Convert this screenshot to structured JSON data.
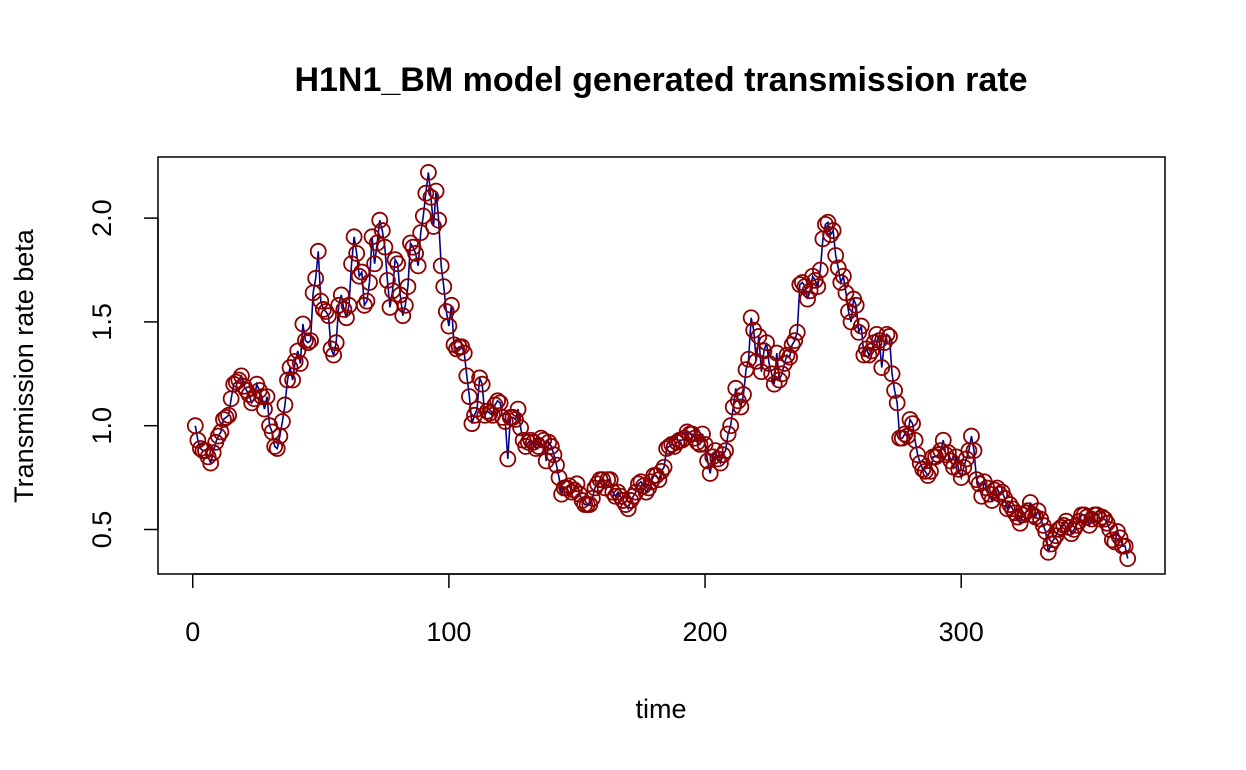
{
  "chart_data": {
    "type": "line",
    "title": "H1N1_BM model generated transmission rate",
    "x_label": "time",
    "y_label": "Transmission rate beta",
    "line_color": "#00008b",
    "point_color": "#8b0000",
    "xlim": [
      -13.56,
      379.56
    ],
    "ylim": [
      0.2856,
      2.2944
    ],
    "xticks": [
      0,
      100,
      200,
      300
    ],
    "yticks": [
      0.5,
      {
        "value": 1,
        "label": "1.0"
      },
      1.5,
      {
        "value": 2,
        "label": "2.0"
      }
    ],
    "x": [
      1,
      2,
      3,
      4,
      5,
      6,
      7,
      8,
      9,
      10,
      11,
      12,
      13,
      14,
      15,
      16,
      17,
      18,
      19,
      20,
      21,
      22,
      23,
      24,
      25,
      26,
      27,
      28,
      29,
      30,
      31,
      32,
      33,
      34,
      35,
      36,
      37,
      38,
      39,
      40,
      41,
      42,
      43,
      44,
      45,
      46,
      47,
      48,
      49,
      50,
      51,
      52,
      53,
      54,
      55,
      56,
      57,
      58,
      59,
      60,
      61,
      62,
      63,
      64,
      65,
      66,
      67,
      68,
      69,
      70,
      71,
      72,
      73,
      74,
      75,
      76,
      77,
      78,
      79,
      80,
      81,
      82,
      83,
      84,
      85,
      86,
      87,
      88,
      89,
      90,
      91,
      92,
      93,
      94,
      95,
      96,
      97,
      98,
      99,
      100,
      101,
      102,
      103,
      104,
      105,
      106,
      107,
      108,
      109,
      110,
      111,
      112,
      113,
      114,
      115,
      116,
      117,
      118,
      119,
      120,
      121,
      122,
      123,
      124,
      125,
      126,
      127,
      128,
      129,
      130,
      131,
      132,
      133,
      134,
      135,
      136,
      137,
      138,
      139,
      140,
      141,
      142,
      143,
      144,
      145,
      146,
      147,
      148,
      149,
      150,
      151,
      152,
      153,
      154,
      155,
      156,
      157,
      158,
      159,
      160,
      161,
      162,
      163,
      164,
      165,
      166,
      167,
      168,
      169,
      170,
      171,
      172,
      173,
      174,
      175,
      176,
      177,
      178,
      179,
      180,
      181,
      182,
      183,
      184,
      185,
      186,
      187,
      188,
      189,
      190,
      191,
      192,
      193,
      194,
      195,
      196,
      197,
      198,
      199,
      200,
      201,
      202,
      203,
      204,
      205,
      206,
      207,
      208,
      209,
      210,
      211,
      212,
      213,
      214,
      215,
      216,
      217,
      218,
      219,
      220,
      221,
      222,
      223,
      224,
      225,
      226,
      227,
      228,
      229,
      230,
      231,
      232,
      233,
      234,
      235,
      236,
      237,
      238,
      239,
      240,
      241,
      242,
      243,
      244,
      245,
      246,
      247,
      248,
      249,
      250,
      251,
      252,
      253,
      254,
      255,
      256,
      257,
      258,
      259,
      260,
      261,
      262,
      263,
      264,
      265,
      266,
      267,
      268,
      269,
      270,
      271,
      272,
      273,
      274,
      275,
      276,
      277,
      278,
      279,
      280,
      281,
      282,
      283,
      284,
      285,
      286,
      287,
      288,
      289,
      290,
      291,
      292,
      293,
      294,
      295,
      296,
      297,
      298,
      299,
      300,
      301,
      302,
      303,
      304,
      305,
      306,
      307,
      308,
      309,
      310,
      311,
      312,
      313,
      314,
      315,
      316,
      317,
      318,
      319,
      320,
      321,
      322,
      323,
      324,
      325,
      326,
      327,
      328,
      329,
      330,
      331,
      332,
      333,
      334,
      335,
      336,
      337,
      338,
      339,
      340,
      341,
      342,
      343,
      344,
      345,
      346,
      347,
      348,
      349,
      350,
      351,
      352,
      353,
      354,
      355,
      356,
      357,
      358,
      359,
      360,
      361,
      362,
      363,
      364,
      365
    ],
    "values": [
      1.0,
      0.93,
      0.89,
      0.88,
      0.88,
      0.85,
      0.82,
      0.87,
      0.92,
      0.95,
      0.97,
      1.03,
      1.04,
      1.05,
      1.13,
      1.2,
      1.21,
      1.22,
      1.24,
      1.19,
      1.17,
      1.15,
      1.11,
      1.13,
      1.2,
      1.17,
      1.14,
      1.08,
      1.14,
      1.0,
      0.97,
      0.9,
      0.89,
      0.95,
      1.02,
      1.1,
      1.22,
      1.28,
      1.22,
      1.31,
      1.36,
      1.3,
      1.49,
      1.41,
      1.4,
      1.41,
      1.64,
      1.71,
      1.84,
      1.6,
      1.56,
      1.55,
      1.53,
      1.37,
      1.34,
      1.4,
      1.58,
      1.63,
      1.56,
      1.52,
      1.58,
      1.78,
      1.91,
      1.83,
      1.72,
      1.74,
      1.58,
      1.6,
      1.69,
      1.91,
      1.78,
      1.88,
      1.99,
      1.94,
      1.86,
      1.7,
      1.57,
      1.65,
      1.8,
      1.78,
      1.63,
      1.53,
      1.58,
      1.67,
      1.88,
      1.86,
      1.83,
      1.77,
      1.93,
      2.01,
      2.12,
      2.22,
      2.1,
      1.96,
      2.13,
      1.99,
      1.77,
      1.67,
      1.55,
      1.48,
      1.58,
      1.39,
      1.37,
      1.38,
      1.38,
      1.35,
      1.24,
      1.14,
      1.01,
      1.05,
      1.08,
      1.23,
      1.2,
      1.05,
      1.07,
      1.06,
      1.05,
      1.1,
      1.12,
      1.11,
      1.04,
      1.02,
      0.84,
      1.04,
      1.04,
      1.03,
      1.08,
      0.99,
      0.93,
      0.9,
      0.92,
      0.93,
      0.92,
      0.89,
      0.9,
      0.94,
      0.93,
      0.83,
      0.92,
      0.9,
      0.86,
      0.81,
      0.75,
      0.67,
      0.7,
      0.7,
      0.71,
      0.68,
      0.69,
      0.72,
      0.67,
      0.64,
      0.62,
      0.62,
      0.62,
      0.65,
      0.7,
      0.72,
      0.74,
      0.74,
      0.7,
      0.74,
      0.74,
      0.68,
      0.66,
      0.68,
      0.66,
      0.64,
      0.62,
      0.6,
      0.64,
      0.66,
      0.68,
      0.72,
      0.73,
      0.71,
      0.68,
      0.7,
      0.73,
      0.76,
      0.76,
      0.74,
      0.78,
      0.8,
      0.89,
      0.9,
      0.91,
      0.9,
      0.92,
      0.93,
      0.93,
      0.94,
      0.97,
      0.96,
      0.96,
      0.94,
      0.92,
      0.91,
      0.96,
      0.91,
      0.83,
      0.77,
      0.85,
      0.88,
      0.84,
      0.82,
      0.86,
      0.88,
      0.96,
      1.0,
      1.09,
      1.18,
      1.12,
      1.09,
      1.15,
      1.27,
      1.32,
      1.52,
      1.46,
      1.31,
      1.43,
      1.26,
      1.36,
      1.4,
      1.3,
      1.25,
      1.2,
      1.35,
      1.22,
      1.25,
      1.3,
      1.34,
      1.33,
      1.39,
      1.41,
      1.45,
      1.68,
      1.69,
      1.67,
      1.61,
      1.65,
      1.72,
      1.7,
      1.67,
      1.75,
      1.9,
      1.97,
      1.98,
      1.92,
      1.94,
      1.82,
      1.76,
      1.69,
      1.72,
      1.64,
      1.55,
      1.5,
      1.61,
      1.58,
      1.45,
      1.48,
      1.34,
      1.37,
      1.34,
      1.36,
      1.4,
      1.44,
      1.41,
      1.28,
      1.4,
      1.44,
      1.43,
      1.25,
      1.17,
      1.11,
      0.94,
      0.94,
      0.96,
      0.95,
      1.03,
      1.01,
      0.93,
      0.86,
      0.82,
      0.79,
      0.78,
      0.76,
      0.78,
      0.85,
      0.85,
      0.86,
      0.88,
      0.93,
      0.86,
      0.87,
      0.83,
      0.8,
      0.85,
      0.79,
      0.75,
      0.8,
      0.84,
      0.88,
      0.95,
      0.88,
      0.74,
      0.72,
      0.66,
      0.73,
      0.7,
      0.67,
      0.64,
      0.69,
      0.7,
      0.67,
      0.68,
      0.65,
      0.6,
      0.62,
      0.6,
      0.58,
      0.56,
      0.53,
      0.57,
      0.58,
      0.59,
      0.63,
      0.57,
      0.56,
      0.59,
      0.55,
      0.52,
      0.49,
      0.39,
      0.43,
      0.45,
      0.47,
      0.5,
      0.51,
      0.52,
      0.54,
      0.51,
      0.48,
      0.5,
      0.52,
      0.54,
      0.57,
      0.57,
      0.56,
      0.52,
      0.55,
      0.57,
      0.57,
      0.55,
      0.56,
      0.55,
      0.53,
      0.5,
      0.45,
      0.44,
      0.49,
      0.46,
      0.42,
      0.42,
      0.36
    ]
  }
}
